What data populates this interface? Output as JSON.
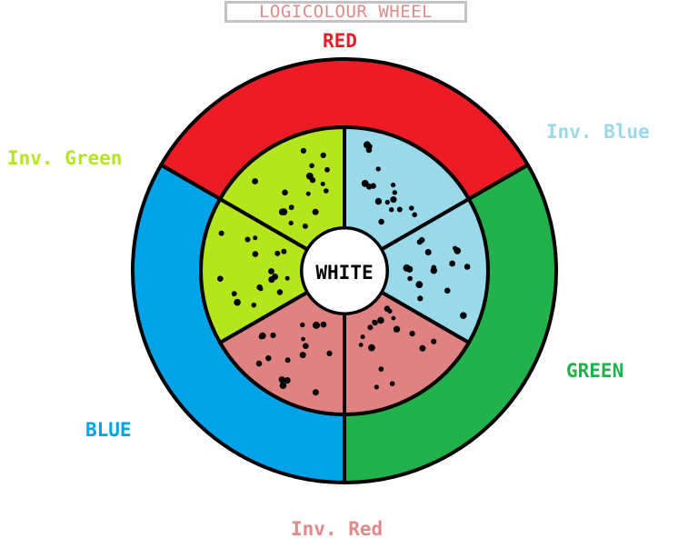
{
  "title": "LOGICOLOUR WHEEL",
  "labels": {
    "red": "RED",
    "inv_blue": "Inv. Blue",
    "inv_green": "Inv. Green",
    "green": "GREEN",
    "blue": "BLUE",
    "inv_red": "Inv. Red",
    "center": "WHITE"
  },
  "colors": {
    "red": "#ec1c24",
    "green": "#22b14c",
    "blue": "#00a2e8",
    "inv_red": "#e08282",
    "inv_green": "#b5e61d",
    "inv_blue": "#99d9ea",
    "center": "#ffffff",
    "outline": "#000000"
  }
}
